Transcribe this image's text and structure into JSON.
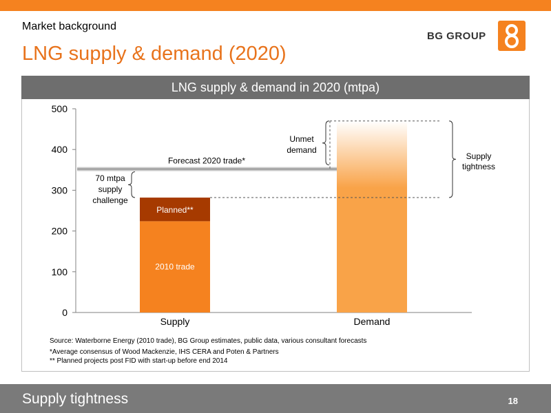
{
  "header": {
    "section": "Market background",
    "title": "LNG supply & demand (2020)",
    "logo_text": "BG GROUP"
  },
  "chart_data": {
    "type": "bar",
    "title": "LNG supply & demand in 2020 (mtpa)",
    "categories": [
      "Supply",
      "Demand"
    ],
    "ylim": [
      0,
      500
    ],
    "yticks": [
      0,
      100,
      200,
      300,
      400,
      500
    ],
    "series": [
      {
        "name": "2010 trade",
        "values": [
          224,
          0
        ],
        "color": "#f5821f"
      },
      {
        "name": "Planned**",
        "values": [
          58,
          0
        ],
        "color": "#a63a00"
      },
      {
        "name": "",
        "values": [
          0,
          470
        ],
        "color": "#f9a348"
      }
    ],
    "forecast_line": {
      "value": 352,
      "label": "Forecast 2020 trade*",
      "color": "#a6a6a6"
    },
    "annotations": {
      "supply_challenge": [
        "70 mtpa",
        "supply",
        "challenge"
      ],
      "unmet_demand": [
        "Unmet",
        "demand"
      ],
      "supply_tightness": [
        "Supply",
        "tightness"
      ]
    },
    "grid": false
  },
  "footnotes": {
    "source": "Source: Waterborne Energy (2010 trade), BG Group estimates, public data, various consultant forecasts",
    "note1": "*Average consensus of Wood Mackenzie, IHS CERA and Poten & Partners",
    "note2": "** Planned projects post FID with start-up before end 2014"
  },
  "footer": {
    "title": "Supply tightness",
    "page": "18"
  },
  "colors": {
    "accent": "#f5821f",
    "dark_bar": "#a63a00",
    "header_gray": "#6e6e6e",
    "footer_gray": "#7a7a7a"
  }
}
